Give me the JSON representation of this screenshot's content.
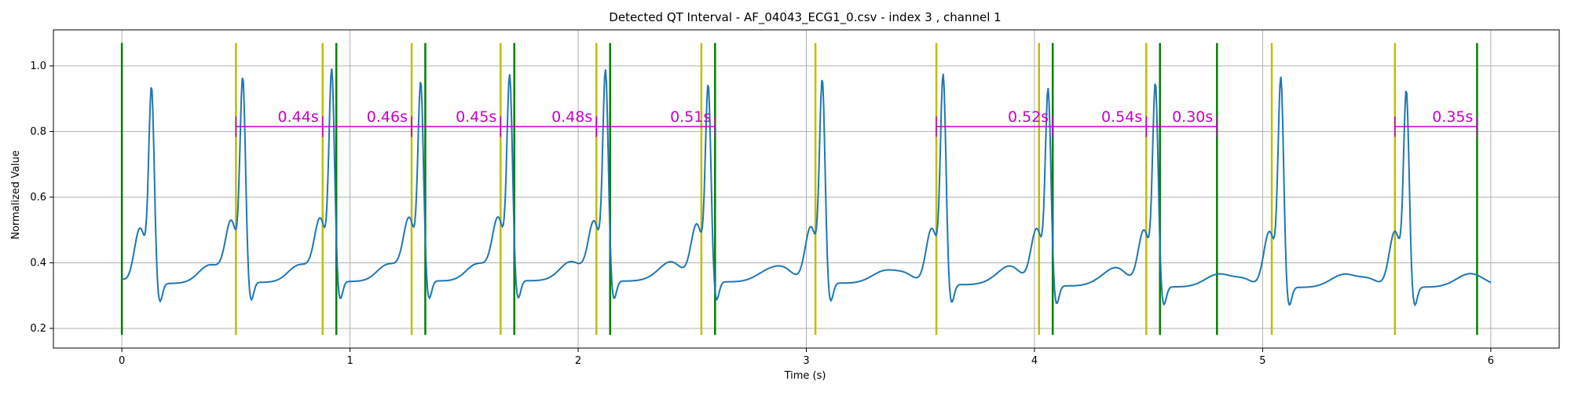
{
  "chart_data": {
    "type": "line",
    "title": "Detected QT Interval - AF_04043_ECG1_0.csv - index 3 , channel 1",
    "xlabel": "Time (s)",
    "ylabel": "Normalized Value",
    "xlim": [
      -0.3,
      6.3
    ],
    "ylim": [
      0.14,
      1.11
    ],
    "grid": true,
    "x_ticks": [
      0,
      1,
      2,
      3,
      4,
      5,
      6
    ],
    "y_ticks": [
      0.2,
      0.4,
      0.6,
      0.8,
      1.0
    ],
    "x_tick_labels": [
      "0",
      "1",
      "2",
      "3",
      "4",
      "5",
      "6"
    ],
    "y_tick_labels": [
      "0.2",
      "0.4",
      "0.6",
      "0.8",
      "1.0"
    ],
    "beats": [
      0.13,
      0.53,
      0.92,
      1.31,
      1.7,
      2.12,
      2.57,
      3.07,
      3.6,
      4.06,
      4.53,
      5.08,
      5.63
    ],
    "green_markers": [
      0.0,
      0.94,
      1.33,
      1.72,
      2.14,
      2.6,
      4.08,
      4.55,
      4.8,
      5.94
    ],
    "yellow_markers": [
      0.5,
      0.88,
      1.27,
      1.66,
      2.08,
      2.54,
      3.04,
      3.57,
      4.02,
      4.49,
      5.04,
      5.58
    ],
    "marker_ylim": [
      0.18,
      1.07
    ],
    "qt_intervals": [
      {
        "start": 0.5,
        "end": 0.88,
        "label": "0.44s"
      },
      {
        "start": 0.88,
        "end": 1.27,
        "label": "0.46s"
      },
      {
        "start": 1.27,
        "end": 1.66,
        "label": "0.45s"
      },
      {
        "start": 1.66,
        "end": 2.08,
        "label": "0.48s"
      },
      {
        "start": 2.08,
        "end": 2.6,
        "label": "0.51s"
      },
      {
        "start": 3.57,
        "end": 4.08,
        "label": "0.52s"
      },
      {
        "start": 4.08,
        "end": 4.49,
        "label": "0.54s"
      },
      {
        "start": 4.49,
        "end": 4.8,
        "label": "0.30s"
      },
      {
        "start": 5.58,
        "end": 5.94,
        "label": "0.35s"
      }
    ],
    "qt_y": 0.815,
    "colors": {
      "signal": "#1f77b4",
      "green": "#008000",
      "yellow": "#bfbf00",
      "qt": "#c800c8",
      "grid": "#b0b0b0"
    }
  }
}
